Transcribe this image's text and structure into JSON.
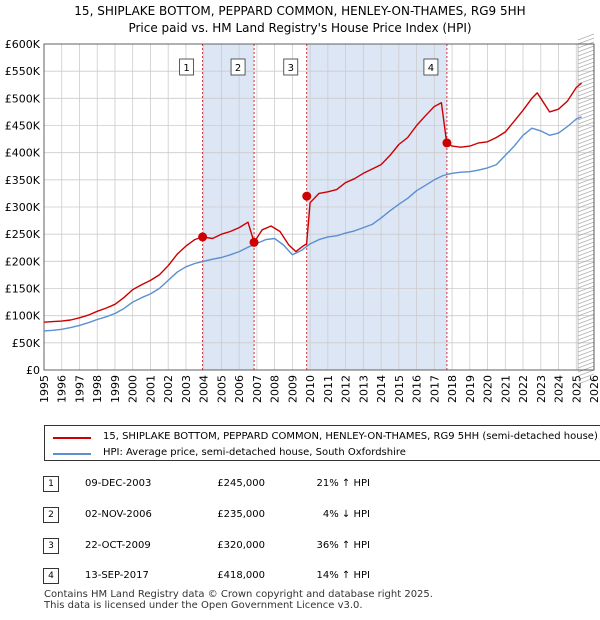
{
  "chart_data": {
    "type": "line",
    "title": "15, SHIPLAKE BOTTOM, PEPPARD COMMON, HENLEY-ON-THAMES, RG9 5HH",
    "subtitle": "Price paid vs. HM Land Registry's House Price Index (HPI)",
    "xlim": [
      1995,
      2026
    ],
    "ylim": [
      0,
      600000
    ],
    "x_ticks": [
      "1995",
      "1996",
      "1997",
      "1998",
      "1999",
      "2000",
      "2001",
      "2002",
      "2003",
      "2004",
      "2005",
      "2006",
      "2007",
      "2008",
      "2009",
      "2010",
      "2011",
      "2012",
      "2013",
      "2014",
      "2015",
      "2016",
      "2017",
      "2018",
      "2019",
      "2020",
      "2021",
      "2022",
      "2023",
      "2024",
      "2025",
      "2026"
    ],
    "y_ticks": [
      {
        "value": 0,
        "label": "£0"
      },
      {
        "value": 50000,
        "label": "£50K"
      },
      {
        "value": 100000,
        "label": "£100K"
      },
      {
        "value": 150000,
        "label": "£150K"
      },
      {
        "value": 200000,
        "label": "£200K"
      },
      {
        "value": 250000,
        "label": "£250K"
      },
      {
        "value": 300000,
        "label": "£300K"
      },
      {
        "value": 350000,
        "label": "£350K"
      },
      {
        "value": 400000,
        "label": "£400K"
      },
      {
        "value": 450000,
        "label": "£450K"
      },
      {
        "value": 500000,
        "label": "£500K"
      },
      {
        "value": 550000,
        "label": "£550K"
      },
      {
        "value": 600000,
        "label": "£600K"
      }
    ],
    "grid": true,
    "forecast_from": 2025.1,
    "series": [
      {
        "name": "15, SHIPLAKE BOTTOM, PEPPARD COMMON, HENLEY-ON-THAMES, RG9 5HH (semi-detached house)",
        "color": "#cc0000",
        "x": [
          1995.0,
          1995.5,
          1996.0,
          1996.5,
          1997.0,
          1997.5,
          1998.0,
          1998.5,
          1999.0,
          1999.5,
          2000.0,
          2000.5,
          2001.0,
          2001.5,
          2002.0,
          2002.5,
          2003.0,
          2003.5,
          2003.94,
          2004.5,
          2005.0,
          2005.5,
          2006.0,
          2006.5,
          2006.84,
          2007.3,
          2007.8,
          2008.3,
          2008.8,
          2009.2,
          2009.6,
          2009.8,
          2010.0,
          2010.5,
          2011.0,
          2011.5,
          2012.0,
          2012.5,
          2013.0,
          2013.5,
          2014.0,
          2014.5,
          2015.0,
          2015.5,
          2016.0,
          2016.5,
          2017.0,
          2017.4,
          2017.7,
          2018.0,
          2018.5,
          2019.0,
          2019.5,
          2020.0,
          2020.5,
          2021.0,
          2021.5,
          2022.0,
          2022.5,
          2022.8,
          2023.0,
          2023.5,
          2024.0,
          2024.5,
          2025.0,
          2025.3
        ],
        "values": [
          88000,
          89000,
          90000,
          92000,
          96000,
          101000,
          108000,
          114000,
          121000,
          133000,
          148000,
          157000,
          165000,
          175000,
          192000,
          213000,
          228000,
          240000,
          245000,
          242000,
          250000,
          255000,
          262000,
          272000,
          235000,
          258000,
          265000,
          255000,
          230000,
          218000,
          228000,
          232000,
          308000,
          325000,
          328000,
          332000,
          345000,
          352000,
          362000,
          370000,
          378000,
          395000,
          415000,
          428000,
          450000,
          468000,
          485000,
          492000,
          418000,
          412000,
          410000,
          412000,
          418000,
          420000,
          428000,
          438000,
          458000,
          478000,
          500000,
          510000,
          500000,
          475000,
          480000,
          495000,
          520000,
          528000
        ]
      },
      {
        "name": "HPI: Average price, semi-detached house, South Oxfordshire",
        "color": "#5b8fd0",
        "x": [
          1995.0,
          1995.5,
          1996.0,
          1996.5,
          1997.0,
          1997.5,
          1998.0,
          1998.5,
          1999.0,
          1999.5,
          2000.0,
          2000.5,
          2001.0,
          2001.5,
          2002.0,
          2002.5,
          2003.0,
          2003.5,
          2004.0,
          2004.5,
          2005.0,
          2005.5,
          2006.0,
          2006.5,
          2007.0,
          2007.5,
          2008.0,
          2008.5,
          2009.0,
          2009.5,
          2010.0,
          2010.5,
          2011.0,
          2011.5,
          2012.0,
          2012.5,
          2013.0,
          2013.5,
          2014.0,
          2014.5,
          2015.0,
          2015.5,
          2016.0,
          2016.5,
          2017.0,
          2017.5,
          2018.0,
          2018.5,
          2019.0,
          2019.5,
          2020.0,
          2020.5,
          2021.0,
          2021.5,
          2022.0,
          2022.5,
          2023.0,
          2023.5,
          2024.0,
          2024.5,
          2025.0,
          2025.3
        ],
        "values": [
          72000,
          73000,
          75000,
          78000,
          82000,
          87000,
          93000,
          98000,
          104000,
          113000,
          125000,
          133000,
          140000,
          150000,
          165000,
          180000,
          190000,
          196000,
          200000,
          204000,
          207000,
          212000,
          218000,
          226000,
          233000,
          240000,
          242000,
          230000,
          212000,
          220000,
          232000,
          240000,
          245000,
          247000,
          252000,
          256000,
          262000,
          268000,
          280000,
          293000,
          305000,
          316000,
          330000,
          340000,
          350000,
          358000,
          362000,
          364000,
          365000,
          368000,
          372000,
          378000,
          395000,
          412000,
          432000,
          445000,
          440000,
          432000,
          436000,
          448000,
          462000,
          466000
        ]
      }
    ],
    "sales": [
      {
        "label": "1",
        "x": 2003.94,
        "value": 245000
      },
      {
        "label": "2",
        "x": 2006.84,
        "value": 235000
      },
      {
        "label": "3",
        "x": 2009.81,
        "value": 320000
      },
      {
        "label": "4",
        "x": 2017.71,
        "value": 418000
      }
    ]
  },
  "header": {
    "title": "15, SHIPLAKE BOTTOM, PEPPARD COMMON, HENLEY-ON-THAMES, RG9 5HH",
    "subtitle": "Price paid vs. HM Land Registry's House Price Index (HPI)"
  },
  "legend": {
    "property": "15, SHIPLAKE BOTTOM, PEPPARD COMMON, HENLEY-ON-THAMES, RG9 5HH (semi-detached house)",
    "hpi": "HPI: Average price, semi-detached house, South Oxfordshire"
  },
  "transactions": [
    {
      "num": "1",
      "date": "09-DEC-2003",
      "price": "£245,000",
      "hpi": "21% ↑ HPI"
    },
    {
      "num": "2",
      "date": "02-NOV-2006",
      "price": "£235,000",
      "hpi": "4% ↓ HPI"
    },
    {
      "num": "3",
      "date": "22-OCT-2009",
      "price": "£320,000",
      "hpi": "36% ↑ HPI"
    },
    {
      "num": "4",
      "date": "13-SEP-2017",
      "price": "£418,000",
      "hpi": "14% ↑ HPI"
    }
  ],
  "footer": {
    "line1": "Contains HM Land Registry data © Crown copyright and database right 2025.",
    "line2": "This data is licensed under the Open Government Licence v3.0."
  },
  "colors": {
    "property": "#cc0000",
    "hpi": "#5b8fd0",
    "shade": "#dde6f5",
    "grid": "#cccccc"
  }
}
